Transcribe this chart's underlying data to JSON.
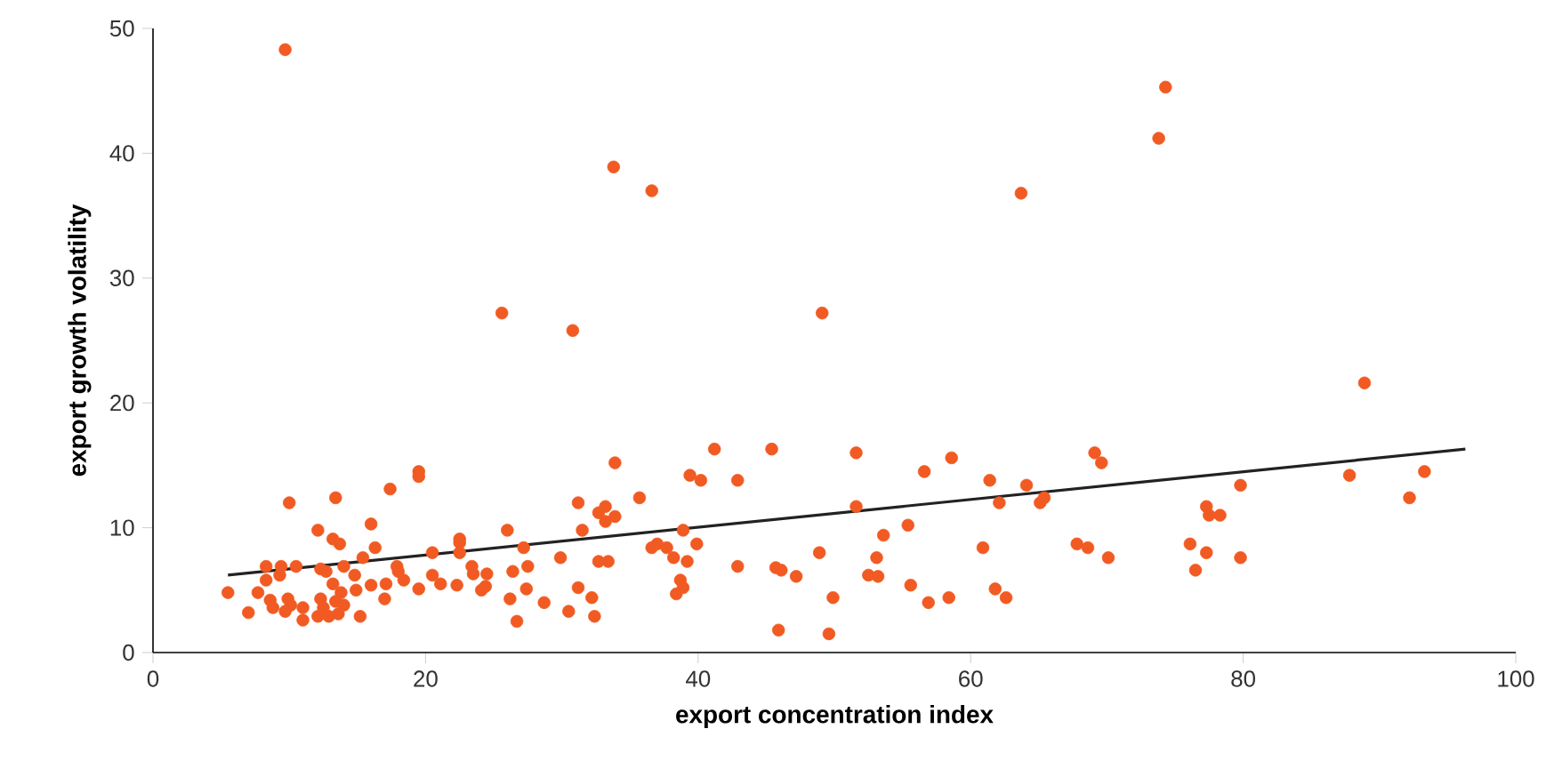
{
  "chart_data": {
    "type": "scatter",
    "xlabel": "export concentration index",
    "ylabel": "export growth volatility",
    "xlim": [
      0,
      100
    ],
    "ylim": [
      0,
      50
    ],
    "xticks": [
      0,
      20,
      40,
      60,
      80,
      100
    ],
    "yticks": [
      0,
      10,
      20,
      30,
      40,
      50
    ],
    "series": [
      {
        "marker": "circle",
        "color": "#f15a22",
        "x": [
          9.7,
          74.3,
          73.8,
          33.8,
          36.6,
          63.7,
          25.6,
          30.8,
          49.1,
          88.9,
          5.5,
          7.0,
          8.3,
          8.3,
          7.7,
          8.6,
          8.8,
          9.4,
          9.3,
          10.0,
          10.5,
          9.9,
          10.1,
          9.7,
          11.0,
          11.0,
          12.1,
          12.3,
          12.7,
          12.3,
          12.5,
          12.1,
          13.2,
          13.7,
          13.4,
          13.2,
          13.8,
          13.4,
          13.6,
          12.9,
          14.0,
          14.8,
          14.9,
          14.0,
          15.2,
          16.0,
          15.4,
          16.0,
          17.4,
          16.3,
          17.1,
          17.0,
          17.9,
          18.0,
          18.4,
          19.5,
          19.5,
          19.5,
          20.5,
          20.5,
          21.1,
          22.3,
          22.5,
          22.5,
          22.5,
          23.4,
          23.5,
          24.5,
          24.1,
          24.4,
          26.0,
          26.2,
          26.7,
          26.4,
          27.2,
          27.4,
          27.5,
          33.9,
          31.2,
          32.7,
          33.2,
          33.2,
          33.9,
          35.7,
          31.5,
          29.9,
          32.7,
          33.4,
          31.2,
          28.7,
          30.5,
          32.2,
          32.4,
          39.4,
          40.2,
          41.2,
          42.9,
          45.4,
          51.6,
          51.6,
          38.9,
          36.6,
          37.0,
          37.7,
          38.2,
          39.9,
          39.2,
          38.7,
          38.9,
          38.4,
          42.9,
          45.7,
          46.1,
          47.2,
          45.9,
          48.9,
          49.9,
          49.6,
          52.5,
          58.6,
          56.6,
          61.4,
          64.1,
          62.1,
          65.1,
          65.4,
          69.1,
          69.6,
          53.6,
          55.4,
          53.1,
          53.2,
          55.6,
          56.9,
          58.4,
          60.9,
          61.8,
          62.6,
          67.8,
          68.6,
          70.1,
          79.8,
          76.1,
          77.3,
          77.5,
          78.3,
          77.3,
          76.5,
          79.8,
          87.8,
          92.2,
          93.3
        ],
        "values": [
          48.3,
          45.3,
          41.2,
          38.9,
          37.0,
          36.8,
          27.2,
          25.8,
          27.2,
          21.6,
          4.8,
          3.2,
          6.9,
          5.8,
          4.8,
          4.2,
          3.6,
          6.9,
          6.2,
          12.0,
          6.9,
          4.3,
          3.8,
          3.3,
          3.6,
          2.6,
          9.8,
          6.7,
          6.5,
          4.3,
          3.6,
          2.9,
          9.1,
          8.7,
          12.4,
          5.5,
          4.8,
          4.1,
          3.1,
          2.9,
          6.9,
          6.2,
          5.0,
          3.8,
          2.9,
          10.3,
          7.6,
          5.4,
          13.1,
          8.4,
          5.5,
          4.3,
          6.9,
          6.5,
          5.8,
          14.5,
          14.1,
          5.1,
          8.0,
          6.2,
          5.5,
          5.4,
          9.1,
          8.0,
          8.8,
          6.9,
          6.3,
          6.3,
          5.0,
          5.3,
          9.8,
          4.3,
          2.5,
          6.5,
          8.4,
          5.1,
          6.9,
          15.2,
          12.0,
          11.2,
          11.7,
          10.5,
          10.9,
          12.4,
          9.8,
          7.6,
          7.3,
          7.3,
          5.2,
          4.0,
          3.3,
          4.4,
          2.9,
          14.2,
          13.8,
          16.3,
          13.8,
          16.3,
          16.0,
          11.7,
          9.8,
          8.4,
          8.7,
          8.4,
          7.6,
          8.7,
          7.3,
          5.8,
          5.2,
          4.7,
          6.9,
          6.8,
          6.6,
          6.1,
          1.8,
          8.0,
          4.4,
          1.5,
          6.2,
          15.6,
          14.5,
          13.8,
          13.4,
          12.0,
          12.0,
          12.4,
          16.0,
          15.2,
          9.4,
          10.2,
          7.6,
          6.1,
          5.4,
          4.0,
          4.4,
          8.4,
          5.1,
          4.4,
          8.7,
          8.4,
          7.6,
          13.4,
          8.7,
          11.7,
          11.0,
          11.0,
          8.0,
          6.6,
          7.6,
          14.2,
          12.4,
          14.5
        ]
      },
      {
        "type": "line",
        "marker": "none",
        "line_style": "solid",
        "color": "#222222",
        "x": [
          5.5,
          96.3
        ],
        "values": [
          6.2,
          16.3
        ]
      }
    ]
  }
}
